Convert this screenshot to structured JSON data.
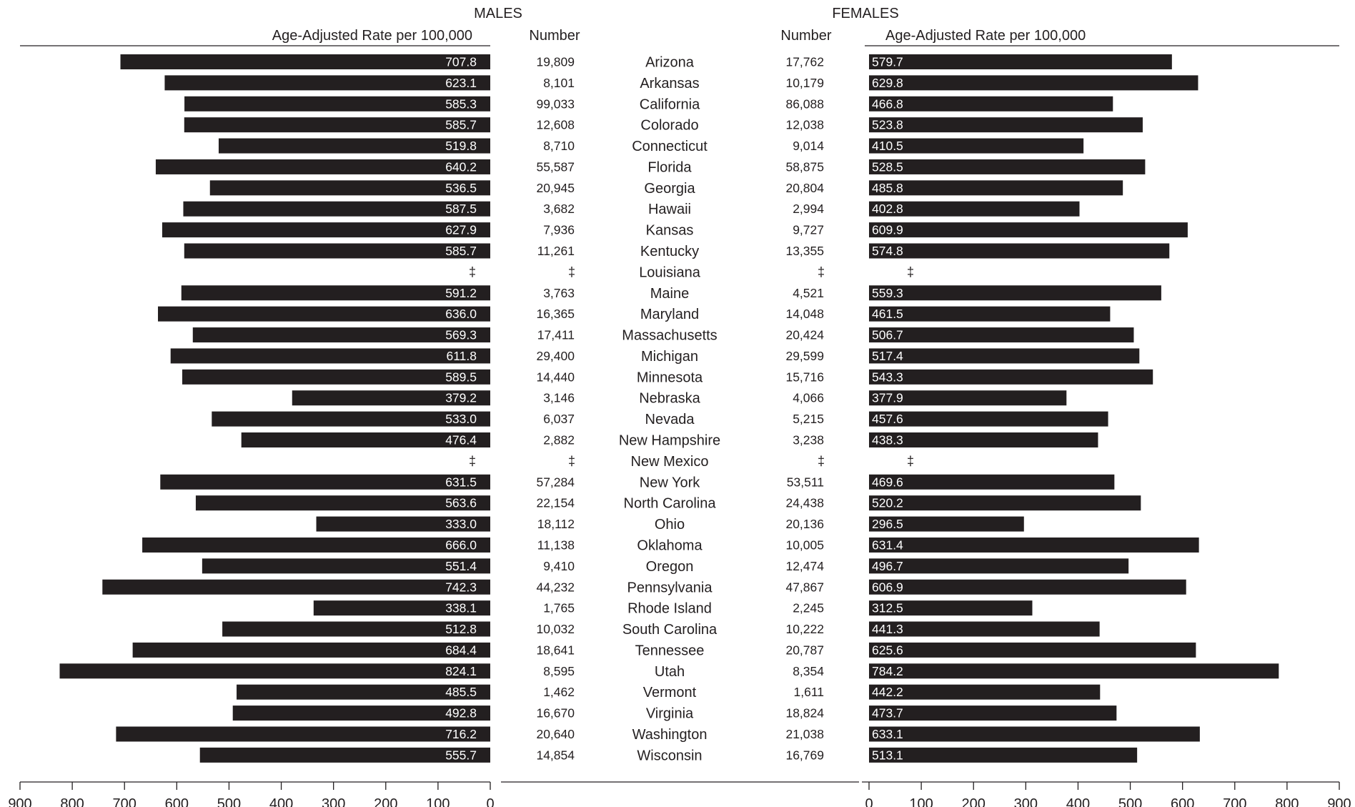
{
  "chart_data": {
    "type": "bar",
    "note": "‡",
    "panels": {
      "males": {
        "title": "MALES",
        "rate_label": "Age-Adjusted Rate per 100,000",
        "number_label": "Number",
        "xlim": [
          0,
          900
        ],
        "ticks": [
          900,
          800,
          700,
          600,
          500,
          400,
          300,
          200,
          100,
          0
        ]
      },
      "females": {
        "title": "FEMALES",
        "rate_label": "Age-Adjusted Rate per 100,000",
        "number_label": "Number",
        "xlim": [
          0,
          900
        ],
        "ticks": [
          0,
          100,
          200,
          300,
          400,
          500,
          600,
          700,
          800,
          900
        ]
      }
    },
    "categories": [
      "Arizona",
      "Arkansas",
      "California",
      "Colorado",
      "Connecticut",
      "Florida",
      "Georgia",
      "Hawaii",
      "Kansas",
      "Kentucky",
      "Louisiana",
      "Maine",
      "Maryland",
      "Massachusetts",
      "Michigan",
      "Minnesota",
      "Nebraska",
      "Nevada",
      "New Hampshire",
      "New Mexico",
      "New York",
      "North Carolina",
      "Ohio",
      "Oklahoma",
      "Oregon",
      "Pennsylvania",
      "Rhode Island",
      "South Carolina",
      "Tennessee",
      "Utah",
      "Vermont",
      "Virginia",
      "Washington",
      "Wisconsin"
    ],
    "series": [
      {
        "name": "MALES",
        "rate": [
          "707.8",
          "623.1",
          "585.3",
          "585.7",
          "519.8",
          "640.2",
          "536.5",
          "587.5",
          "627.9",
          "585.7",
          "‡",
          "591.2",
          "636.0",
          "569.3",
          "611.8",
          "589.5",
          "379.2",
          "533.0",
          "476.4",
          "‡",
          "631.5",
          "563.6",
          "333.0",
          "666.0",
          "551.4",
          "742.3",
          "338.1",
          "512.8",
          "684.4",
          "824.1",
          "485.5",
          "492.8",
          "716.2",
          "555.7"
        ],
        "number": [
          "19,809",
          "8,101",
          "99,033",
          "12,608",
          "8,710",
          "55,587",
          "20,945",
          "3,682",
          "7,936",
          "11,261",
          "‡",
          "3,763",
          "16,365",
          "17,411",
          "29,400",
          "14,440",
          "3,146",
          "6,037",
          "2,882",
          "‡",
          "57,284",
          "22,154",
          "18,112",
          "11,138",
          "9,410",
          "44,232",
          "1,765",
          "10,032",
          "18,641",
          "8,595",
          "1,462",
          "16,670",
          "20,640",
          "14,854"
        ]
      },
      {
        "name": "FEMALES",
        "rate": [
          "579.7",
          "629.8",
          "466.8",
          "523.8",
          "410.5",
          "528.5",
          "485.8",
          "402.8",
          "609.9",
          "574.8",
          "‡",
          "559.3",
          "461.5",
          "506.7",
          "517.4",
          "543.3",
          "377.9",
          "457.6",
          "438.3",
          "‡",
          "469.6",
          "520.2",
          "296.5",
          "631.4",
          "496.7",
          "606.9",
          "312.5",
          "441.3",
          "625.6",
          "784.2",
          "442.2",
          "473.7",
          "633.1",
          "513.1"
        ],
        "number": [
          "17,762",
          "10,179",
          "86,088",
          "12,038",
          "9,014",
          "58,875",
          "20,804",
          "2,994",
          "9,727",
          "13,355",
          "‡",
          "4,521",
          "14,048",
          "20,424",
          "29,599",
          "15,716",
          "4,066",
          "5,215",
          "3,238",
          "‡",
          "53,511",
          "24,438",
          "20,136",
          "10,005",
          "12,474",
          "47,867",
          "2,245",
          "10,222",
          "20,787",
          "8,354",
          "1,611",
          "18,824",
          "21,038",
          "16,769"
        ]
      }
    ],
    "colors": {
      "bar": "#231f20",
      "bar_label": "#ffffff",
      "text": "#231f20",
      "background": "#ffffff"
    }
  }
}
